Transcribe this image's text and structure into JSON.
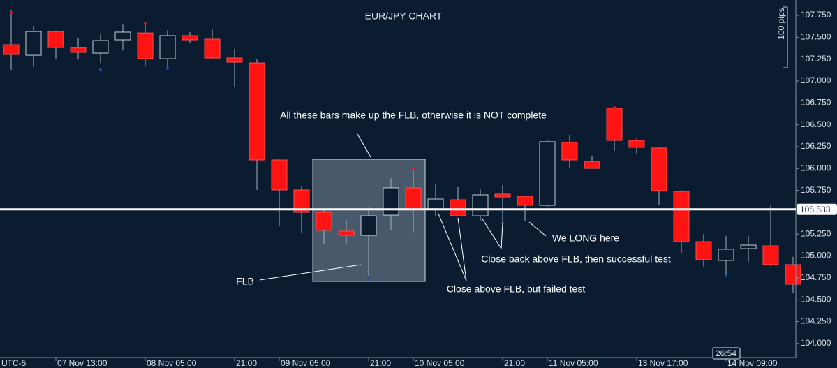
{
  "chart_data": {
    "type": "candlestick",
    "title": "EUR/JPY CHART",
    "timezone": "UTC-5",
    "scale_label": "100 pips",
    "timer": "26:54",
    "last_price": 105.533,
    "up_color": "#c6ced8",
    "down_color": "#ff1414",
    "categories": [
      null,
      null,
      "07 Nov 13:00",
      null,
      null,
      null,
      "08 Nov 05:00",
      null,
      null,
      null,
      "21:00",
      null,
      "09 Nov 05:00",
      null,
      null,
      null,
      "21:00",
      null,
      "10 Nov 05:00",
      null,
      null,
      null,
      "21:00",
      null,
      "11 Nov 05:00",
      null,
      null,
      null,
      "13 Nov 17:00",
      null,
      null,
      null,
      "14 Nov 09:00",
      null,
      null,
      null
    ],
    "open": [
      107.415,
      107.295,
      107.566,
      107.383,
      107.319,
      107.471,
      107.55,
      107.255,
      107.519,
      107.479,
      107.263,
      107.207,
      106.098,
      105.755,
      105.499,
      105.284,
      105.236,
      105.467,
      105.779,
      105.539,
      105.643,
      105.459,
      105.707,
      105.683,
      105.579,
      106.298,
      106.082,
      106.689,
      106.321,
      106.234,
      105.739,
      105.164,
      104.949,
      105.084,
      105.116,
      104.901
    ],
    "high": [
      107.806,
      107.63,
      107.58,
      107.487,
      107.543,
      107.646,
      107.646,
      107.582,
      107.558,
      107.59,
      107.367,
      107.255,
      106.106,
      105.803,
      105.531,
      105.41,
      105.555,
      105.89,
      105.986,
      105.827,
      105.787,
      105.763,
      105.811,
      105.691,
      106.321,
      106.385,
      106.146,
      106.705,
      106.353,
      106.242,
      105.755,
      105.252,
      105.228,
      105.228,
      105.587,
      104.989
    ],
    "low": [
      107.127,
      107.159,
      107.247,
      107.247,
      107.207,
      107.351,
      107.167,
      107.151,
      107.431,
      107.247,
      106.928,
      105.755,
      105.348,
      105.268,
      105.132,
      105.132,
      104.773,
      105.292,
      105.268,
      105.452,
      105.452,
      105.396,
      105.404,
      105.404,
      105.563,
      106.01,
      105.994,
      106.202,
      106.17,
      105.579,
      105.037,
      104.869,
      104.789,
      104.933,
      104.885,
      104.574
    ],
    "close": [
      107.303,
      107.566,
      107.383,
      107.327,
      107.463,
      107.559,
      107.255,
      107.519,
      107.471,
      107.263,
      107.215,
      106.098,
      105.755,
      105.499,
      105.292,
      105.236,
      105.459,
      105.779,
      105.539,
      105.651,
      105.459,
      105.699,
      105.675,
      105.579,
      106.306,
      106.098,
      106.002,
      106.321,
      106.242,
      105.747,
      105.164,
      104.957,
      105.077,
      105.124,
      104.901,
      104.677
    ],
    "ylim": [
      103.855,
      107.926
    ],
    "yticks": [
      {
        "value": 104.0,
        "label": "104.000"
      },
      {
        "value": 104.25,
        "label": "104.250"
      },
      {
        "value": 104.5,
        "label": "104.500"
      },
      {
        "value": 104.75,
        "label": "104.750"
      },
      {
        "value": 105.0,
        "label": "105.000"
      },
      {
        "value": 105.25,
        "label": "105.250"
      },
      {
        "value": 105.75,
        "label": "105.750"
      },
      {
        "value": 106.0,
        "label": "106.000"
      },
      {
        "value": 106.25,
        "label": "106.250"
      },
      {
        "value": 106.5,
        "label": "106.500"
      },
      {
        "value": 106.75,
        "label": "106.750"
      },
      {
        "value": 107.0,
        "label": "107.000"
      },
      {
        "value": 107.25,
        "label": "107.250"
      },
      {
        "value": 107.5,
        "label": "107.500"
      },
      {
        "value": 107.75,
        "label": "107.750"
      }
    ],
    "annotations": [
      "All these bars make up the FLB, otherwise it is NOT complete",
      "FLB",
      "We LONG here",
      "Close back above FLB,  then successful test",
      "Close above FLB, but failed test"
    ]
  }
}
